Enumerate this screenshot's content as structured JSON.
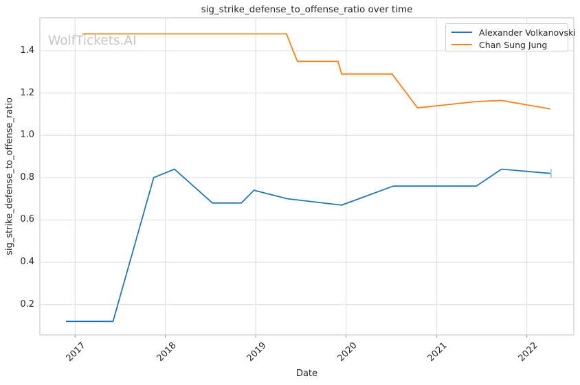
{
  "title": "sig_strike_defense_to_offense_ratio over time",
  "watermark": "WolfTickets.AI",
  "chart_data": {
    "type": "line",
    "title": "sig_strike_defense_to_offense_ratio over time",
    "xlabel": "Date",
    "ylabel": "sig_strike_defense_to_offense_ratio",
    "grid": true,
    "legend_position": "upper right",
    "xlim": [
      2016.61,
      2022.52
    ],
    "ylim": [
      0.056,
      1.556
    ],
    "x_ticks": [
      2017,
      2018,
      2019,
      2020,
      2021,
      2022
    ],
    "y_ticks": [
      0.2,
      0.4,
      0.6,
      0.8,
      1.0,
      1.2,
      1.4
    ],
    "colors": {
      "grid": "#dcdcdc",
      "spine": "#cccccc",
      "tick": "#888888",
      "text": "#262626",
      "watermark": "#c5c5c5"
    },
    "series": [
      {
        "name": "Alexander Volkanovski",
        "color": "#1f77b4",
        "x": [
          2016.9,
          2017.42,
          2017.87,
          2018.1,
          2018.52,
          2018.84,
          2018.98,
          2019.35,
          2019.95,
          2020.52,
          2021.44,
          2021.72,
          2022.26
        ],
        "y": [
          0.12,
          0.12,
          0.8,
          0.84,
          0.68,
          0.68,
          0.74,
          0.7,
          0.67,
          0.76,
          0.76,
          0.84,
          0.82
        ],
        "end_cap_tick": true
      },
      {
        "name": "Chan Sung Jung",
        "color": "#ff7f0e",
        "x": [
          2017.08,
          2019.34,
          2019.46,
          2019.91,
          2019.95,
          2020.51,
          2020.79,
          2021.44,
          2021.72,
          2022.26
        ],
        "y": [
          1.48,
          1.48,
          1.35,
          1.35,
          1.29,
          1.29,
          1.13,
          1.16,
          1.165,
          1.125
        ],
        "end_cap_tick": false
      }
    ]
  }
}
